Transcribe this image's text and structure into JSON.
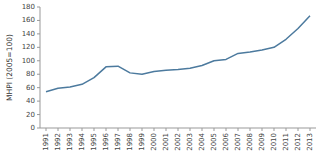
{
  "chart_data": {
    "type": "line",
    "x": [
      1991,
      1992,
      1993,
      1994,
      1995,
      1996,
      1997,
      1998,
      1999,
      2000,
      2001,
      2002,
      2003,
      2004,
      2005,
      2006,
      2007,
      2008,
      2009,
      2010,
      2011,
      2012,
      2013
    ],
    "values": [
      54,
      59,
      61,
      65,
      75,
      91,
      92,
      82,
      80,
      84,
      86,
      87,
      89,
      93,
      100,
      102,
      111,
      113,
      116,
      120,
      132,
      148,
      167
    ],
    "ylabel": "MHPI (2005=100)",
    "xlim": [
      1990.5,
      2013.5
    ],
    "xticks": [
      1991,
      1992,
      1993,
      1994,
      1995,
      1996,
      1997,
      1998,
      1999,
      2000,
      2001,
      2002,
      2003,
      2004,
      2005,
      2006,
      2007,
      2008,
      2009,
      2010,
      2011,
      2012,
      2013
    ],
    "ylim": [
      0,
      180
    ],
    "yticks": [
      0,
      20,
      40,
      60,
      80,
      100,
      120,
      140,
      160,
      180
    ],
    "color": "#4c7a9e",
    "grid": false
  }
}
